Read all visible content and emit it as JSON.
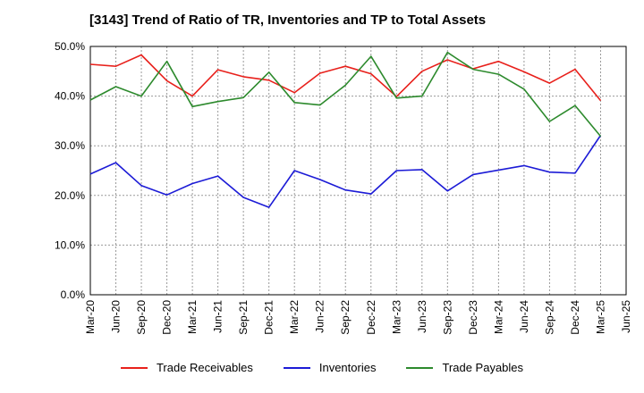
{
  "chart_data": {
    "type": "line",
    "title": "[3143]  Trend of Ratio of TR, Inventories and TP to Total Assets",
    "x": [
      "Mar-20",
      "Jun-20",
      "Sep-20",
      "Dec-20",
      "Mar-21",
      "Jun-21",
      "Sep-21",
      "Dec-21",
      "Mar-22",
      "Jun-22",
      "Sep-22",
      "Dec-22",
      "Mar-23",
      "Jun-23",
      "Sep-23",
      "Dec-23",
      "Mar-24",
      "Jun-24",
      "Sep-24",
      "Dec-24",
      "Mar-25",
      "Jun-25"
    ],
    "yticks": [
      "0.0%",
      "10.0%",
      "20.0%",
      "30.0%",
      "40.0%",
      "50.0%"
    ],
    "ylim": [
      0,
      50
    ],
    "grid": true,
    "legend_position": "bottom",
    "series": [
      {
        "name": "Trade Receivables",
        "color": "#e8201b",
        "values": [
          46.4,
          46.0,
          48.3,
          43.1,
          40.0,
          45.3,
          43.9,
          43.2,
          40.7,
          44.6,
          46.0,
          44.5,
          39.9,
          45.0,
          47.3,
          45.5,
          47.0,
          44.9,
          42.6,
          45.4,
          39.1,
          null
        ]
      },
      {
        "name": "Inventories",
        "color": "#1c1bd6",
        "values": [
          24.3,
          26.6,
          22.0,
          20.1,
          22.4,
          23.9,
          19.6,
          17.6,
          25.0,
          23.2,
          21.1,
          20.3,
          25.0,
          25.2,
          20.9,
          24.2,
          25.1,
          26.0,
          24.7,
          24.5,
          32.1,
          null
        ]
      },
      {
        "name": "Trade Payables",
        "color": "#2d8a2d",
        "values": [
          39.2,
          41.9,
          40.0,
          47.0,
          37.9,
          38.9,
          39.7,
          44.8,
          38.7,
          38.2,
          42.2,
          48.0,
          39.6,
          40.0,
          48.8,
          45.4,
          44.4,
          41.4,
          34.9,
          38.1,
          31.9,
          null
        ]
      }
    ]
  }
}
